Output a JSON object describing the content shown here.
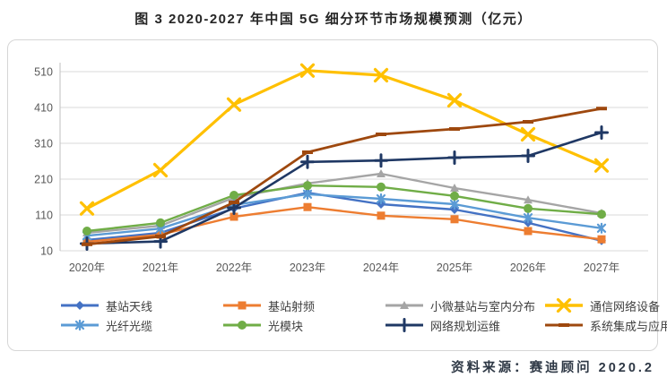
{
  "figure": {
    "title": "图 3 2020-2027 年中国 5G 细分环节市场规模预测（亿元）",
    "source": "资料来源：赛迪顾问  2020.2"
  },
  "chart_data": {
    "type": "line",
    "title": "图 3 2020-2027 年中国 5G 细分环节市场规模预测（亿元）",
    "unit": "亿元",
    "xlabel": "",
    "ylabel": "",
    "categories": [
      "2020年",
      "2021年",
      "2022年",
      "2023年",
      "2024年",
      "2025年",
      "2026年",
      "2027年"
    ],
    "y_ticks": [
      10,
      110,
      210,
      310,
      410,
      510
    ],
    "ylim": [
      10,
      510
    ],
    "grid": true,
    "legend_position": "bottom",
    "axis_color": "#bfbfbf",
    "gridline_color": "#d9d9d9",
    "tick_label_color": "#595959",
    "series": [
      {
        "name": "基站天线",
        "color": "#4472C4",
        "marker": "diamond",
        "values": [
          40,
          60,
          128,
          172,
          140,
          125,
          88,
          38
        ]
      },
      {
        "name": "基站射频",
        "color": "#ED7D31",
        "marker": "square",
        "values": [
          35,
          55,
          105,
          132,
          108,
          98,
          65,
          42
        ]
      },
      {
        "name": "小微基站与室内分布",
        "color": "#A5A5A5",
        "marker": "triangle",
        "values": [
          60,
          80,
          158,
          198,
          225,
          185,
          152,
          115
        ]
      },
      {
        "name": "通信网络设备",
        "color": "#FFC000",
        "marker": "x",
        "values": [
          128,
          235,
          418,
          513,
          500,
          430,
          335,
          248
        ]
      },
      {
        "name": "光纤光缆",
        "color": "#5B9BD5",
        "marker": "asterisk",
        "values": [
          52,
          72,
          138,
          168,
          155,
          140,
          102,
          73
        ]
      },
      {
        "name": "光模块",
        "color": "#70AD47",
        "marker": "circle",
        "values": [
          65,
          88,
          165,
          192,
          188,
          163,
          128,
          112
        ]
      },
      {
        "name": "网络规划运维",
        "color": "#1F3864",
        "marker": "plus",
        "values": [
          30,
          36,
          130,
          258,
          262,
          270,
          275,
          340
        ]
      },
      {
        "name": "系统集成与应用服务",
        "color": "#9E480E",
        "marker": "dash",
        "values": [
          28,
          50,
          145,
          285,
          335,
          350,
          370,
          407
        ]
      }
    ]
  }
}
